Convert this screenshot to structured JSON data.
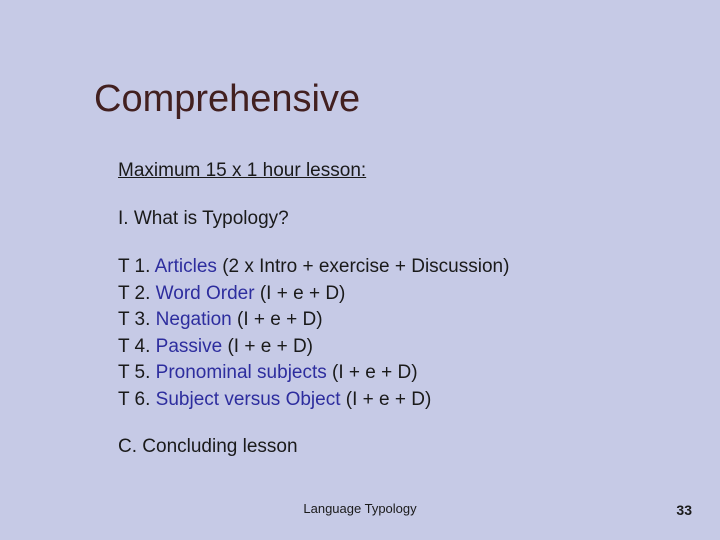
{
  "slide": {
    "background_color": "#c6cae6",
    "title": "Comprehensive",
    "title_color": "#422020",
    "title_fontsize": 38,
    "subtitle": "Maximum 15 x 1 hour lesson:",
    "section_intro": "I. What is Typology?",
    "topics": [
      {
        "prefix": "T 1. ",
        "blue": "Articles",
        "rest": " (2 x Intro + exercise + Discussion)"
      },
      {
        "prefix": "T 2. ",
        "blue": "Word Order",
        "rest": " (I + e + D)"
      },
      {
        "prefix": "T 3. ",
        "blue": "Negation",
        "rest": " (I + e + D)"
      },
      {
        "prefix": "T 4. ",
        "blue": "Passive",
        "rest": " (I + e + D)"
      },
      {
        "prefix": "T 5. ",
        "blue": "Pronominal subjects",
        "rest": " (I + e + D)"
      },
      {
        "prefix": "T 6. ",
        "blue": "Subject versus Object",
        "rest": " (I + e + D)"
      }
    ],
    "topic_blue_color": "#2d2d9e",
    "body_fontsize": 19,
    "body_color": "#1a1a1a",
    "conclusion": "C. Concluding lesson",
    "footer_center": "Language Typology",
    "page_number": "33"
  }
}
